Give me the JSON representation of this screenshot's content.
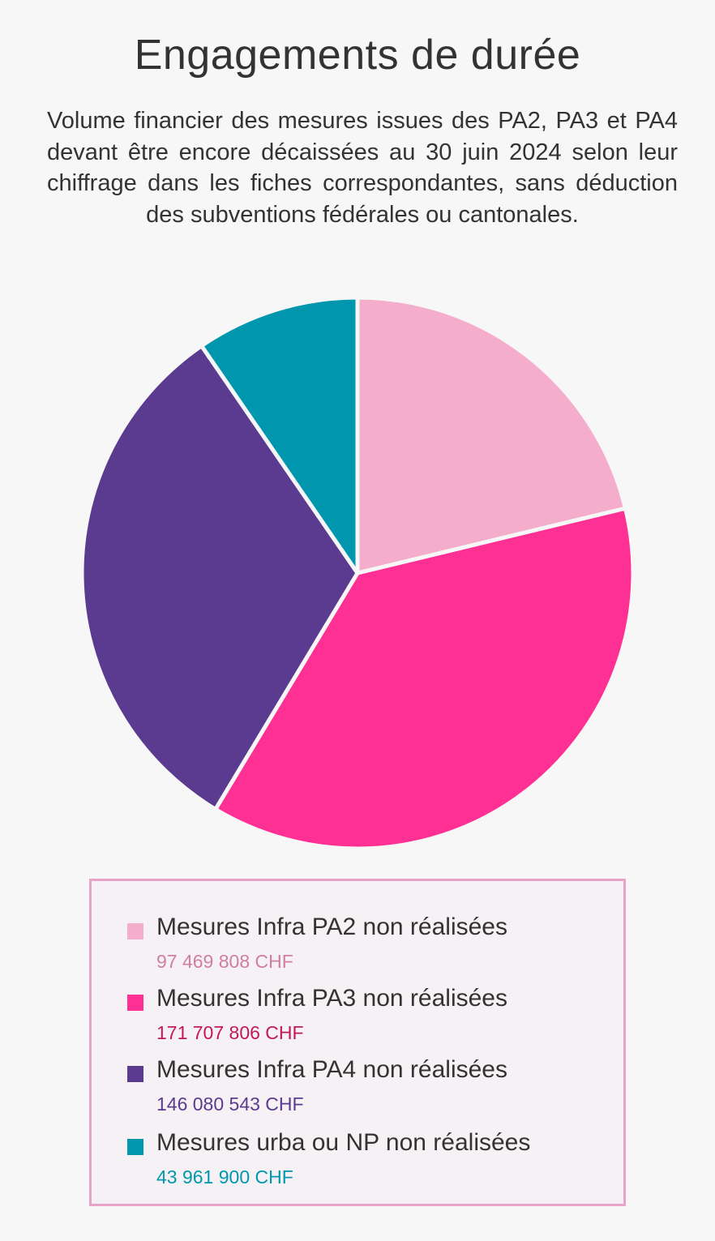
{
  "title": "Engagements de durée",
  "subtitle": "Volume financier des mesures issues des PA2, PA3 et PA4 devant être encore décaissées au 30 juin 2024 selon leur chiffrage dans les fiches correspondantes, sans déduction des subventions fédérales ou cantonales.",
  "chart_data": {
    "type": "pie",
    "title": "Engagements de durée",
    "categories": [
      "Mesures Infra PA2 non réalisées",
      "Mesures Infra PA3 non réalisées",
      "Mesures Infra PA4 non réalisées",
      "Mesures urba ou NP non réalisées"
    ],
    "values": [
      97469808,
      171707806,
      146080543,
      43961900
    ],
    "colors": [
      "#f4aecb",
      "#ff3093",
      "#5b3b8f",
      "#0097ae"
    ],
    "legend_position": "bottom"
  },
  "legend": {
    "items": [
      {
        "label": "Mesures Infra PA2 non réalisées",
        "value": "97 469 808 CHF",
        "color": "#f4aecb",
        "value_color": "#cf7f9f"
      },
      {
        "label": "Mesures Infra PA3 non réalisées",
        "value": "171 707 806 CHF",
        "color": "#ff3093",
        "value_color": "#c2185b"
      },
      {
        "label": "Mesures Infra PA4 non réalisées",
        "value": "146 080 543 CHF",
        "color": "#5b3b8f",
        "value_color": "#5b3b8f"
      },
      {
        "label": "Mesures urba ou NP non réalisées",
        "value": "43 961 900 CHF",
        "color": "#0097ae",
        "value_color": "#0097ae"
      }
    ]
  }
}
